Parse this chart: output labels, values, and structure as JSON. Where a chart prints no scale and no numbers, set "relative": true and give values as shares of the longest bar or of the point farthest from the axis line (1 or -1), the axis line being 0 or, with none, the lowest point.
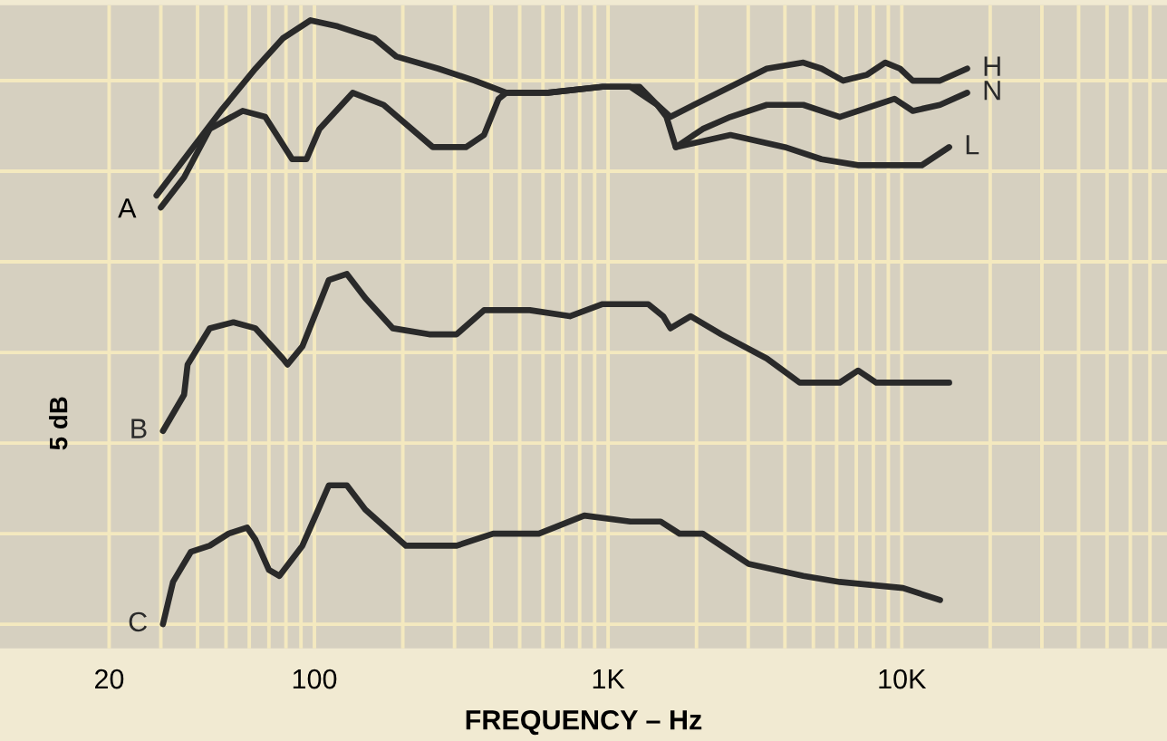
{
  "chart_data": {
    "type": "line",
    "relative": true,
    "xlabel": "FREQUENCY – Hz",
    "log": "x",
    "grid": true,
    "tick_labels": "x",
    "xlim": [
      8.5,
      80000
    ],
    "xticks": [
      20,
      {
        "value": 30,
        "label": null
      },
      {
        "value": 40,
        "label": null
      },
      {
        "value": 50,
        "label": null
      },
      {
        "value": 60,
        "label": null
      },
      {
        "value": 70,
        "label": null
      },
      {
        "value": 80,
        "label": null
      },
      {
        "value": 90,
        "label": null
      },
      100,
      {
        "value": 200,
        "label": null
      },
      {
        "value": 300,
        "label": null
      },
      {
        "value": 400,
        "label": null
      },
      {
        "value": 500,
        "label": null
      },
      {
        "value": 600,
        "label": null
      },
      {
        "value": 700,
        "label": null
      },
      {
        "value": 800,
        "label": null
      },
      {
        "value": 900,
        "label": null
      },
      {
        "value": 1000,
        "label": "1K"
      },
      {
        "value": 2000,
        "label": null
      },
      {
        "value": 3000,
        "label": null
      },
      {
        "value": 4000,
        "label": null
      },
      {
        "value": 5000,
        "label": null
      },
      {
        "value": 6000,
        "label": null
      },
      {
        "value": 7000,
        "label": null
      },
      {
        "value": 8000,
        "label": null
      },
      {
        "value": 9000,
        "label": null
      },
      {
        "value": 10000,
        "label": "10K"
      },
      {
        "value": 20000,
        "label": null
      },
      {
        "value": 30000,
        "label": null
      },
      {
        "value": 40000,
        "label": null
      },
      {
        "value": 50000,
        "label": null
      },
      {
        "value": 60000,
        "label": null
      },
      {
        "value": 70000,
        "label": null
      }
    ],
    "annotations": [
      "A",
      "5 dB"
    ],
    "series": [
      {
        "name": "H",
        "color": "#2a2a2a",
        "x": [
          29,
          36,
          48,
          63,
          78,
          97,
          120,
          160,
          190,
          264,
          352,
          450,
          624,
          958,
          1190,
          1280,
          1470,
          1630,
          1960,
          2610,
          3470,
          4620,
          5330,
          6320,
          7620,
          8790,
          9860,
          10900,
          13500,
          16700
        ],
        "values": [
          0.71,
          0.77,
          0.85,
          0.92,
          0.97,
          1.0,
          0.99,
          0.97,
          0.94,
          0.92,
          0.9,
          0.88,
          0.88,
          0.89,
          0.89,
          0.89,
          0.86,
          0.84,
          0.86,
          0.89,
          0.92,
          0.93,
          0.92,
          0.9,
          0.91,
          0.93,
          0.92,
          0.9,
          0.9,
          0.92
        ]
      },
      {
        "name": "N",
        "color": "#2a2a2a",
        "x": [
          30,
          36,
          44,
          57,
          68,
          84,
          94,
          104,
          135,
          172,
          253,
          328,
          378,
          424,
          450,
          624,
          958,
          1190,
          1470,
          1580,
          1700,
          2100,
          2610,
          3470,
          4620,
          6150,
          8190,
          9440,
          10900,
          13500,
          16700
        ],
        "values": [
          0.69,
          0.74,
          0.82,
          0.85,
          0.84,
          0.77,
          0.77,
          0.82,
          0.88,
          0.86,
          0.79,
          0.79,
          0.81,
          0.87,
          0.88,
          0.88,
          0.89,
          0.89,
          0.86,
          0.84,
          0.79,
          0.82,
          0.84,
          0.86,
          0.86,
          0.84,
          0.86,
          0.87,
          0.85,
          0.86,
          0.88
        ]
      },
      {
        "name": "L",
        "color": "#2a2a2a",
        "x": [
          1700,
          2610,
          4000,
          5330,
          7100,
          9440,
          11700,
          14500
        ],
        "values": [
          0.79,
          0.81,
          0.79,
          0.77,
          0.76,
          0.76,
          0.76,
          0.79
        ]
      },
      {
        "name": "B",
        "color": "#2a2a2a",
        "x": [
          30.5,
          36,
          37,
          44,
          53,
          63,
          78,
          81,
          91,
          112,
          129,
          149,
          185,
          246,
          305,
          378,
          541,
          741,
          958,
          1370,
          1540,
          1630,
          1910,
          2430,
          3470,
          4490,
          6150,
          7100,
          8190,
          14500
        ],
        "values": [
          0.32,
          0.38,
          0.43,
          0.49,
          0.5,
          0.49,
          0.44,
          0.43,
          0.46,
          0.57,
          0.58,
          0.54,
          0.49,
          0.48,
          0.48,
          0.52,
          0.52,
          0.51,
          0.53,
          0.53,
          0.51,
          0.49,
          0.51,
          0.48,
          0.44,
          0.4,
          0.4,
          0.42,
          0.4,
          0.4
        ]
      },
      {
        "name": "C",
        "color": "#2a2a2a",
        "x": [
          30.5,
          33,
          38,
          44,
          51,
          59,
          63,
          70,
          76,
          91,
          101,
          112,
          129,
          149,
          205,
          305,
          406,
          581,
          830,
          1190,
          1510,
          1750,
          2100,
          3010,
          4620,
          6150,
          10100,
          13500
        ],
        "values": [
          0,
          0.07,
          0.12,
          0.13,
          0.15,
          0.16,
          0.14,
          0.09,
          0.08,
          0.13,
          0.18,
          0.23,
          0.23,
          0.19,
          0.13,
          0.13,
          0.15,
          0.15,
          0.18,
          0.17,
          0.17,
          0.15,
          0.15,
          0.1,
          0.08,
          0.07,
          0.06,
          0.04
        ]
      }
    ]
  }
}
